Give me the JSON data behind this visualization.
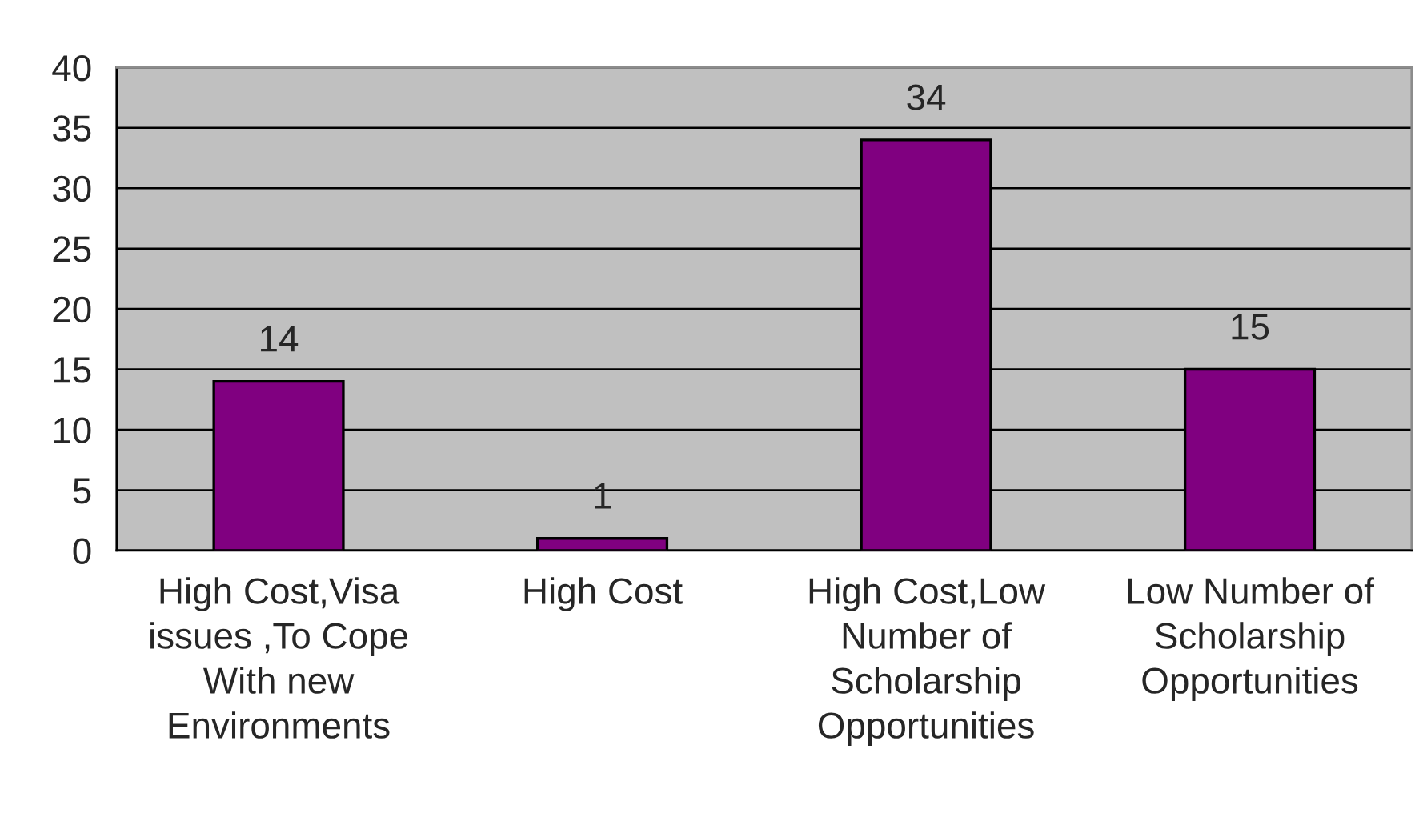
{
  "chart_data": {
    "type": "bar",
    "categories": [
      "High Cost,Visa\nissues ,To Cope\nWith new\nEnvironments",
      "High Cost",
      "High Cost,Low\nNumber of\nScholarship\nOpportunities",
      "Low Number of\nScholarship\nOpportunities"
    ],
    "values": [
      14,
      1,
      34,
      15
    ],
    "color": "#800080",
    "ylim": [
      0,
      40
    ],
    "yticks": [
      0,
      5,
      10,
      15,
      20,
      25,
      30,
      35,
      40
    ],
    "grid": "y",
    "data_labels": true
  }
}
